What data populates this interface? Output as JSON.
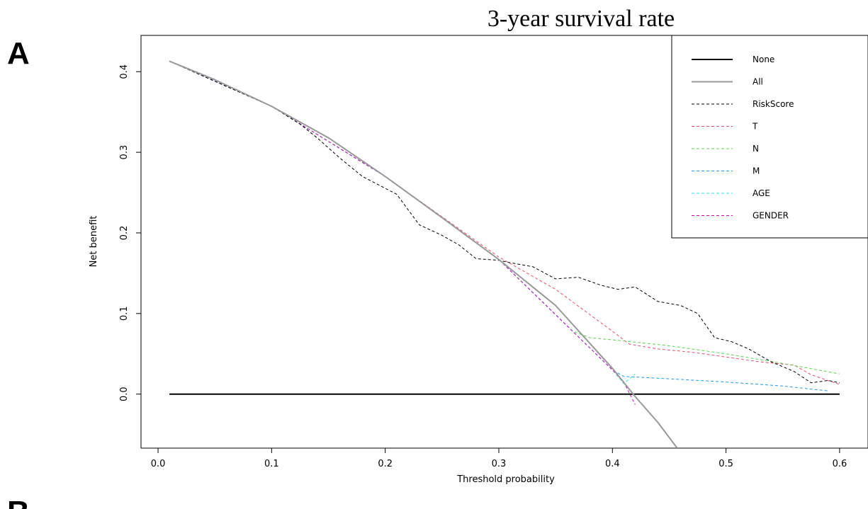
{
  "panel_labels": {
    "top": "A",
    "bottom": "B"
  },
  "chart_data": {
    "type": "line",
    "title": "3-year survival rate",
    "xlabel": "Threshold probability",
    "ylabel": "Net benefit",
    "xlim": [
      -0.015,
      0.625
    ],
    "ylim": [
      -0.067,
      0.445
    ],
    "xticks": [
      "0.0",
      "0.1",
      "0.2",
      "0.3",
      "0.4",
      "0.5",
      "0.6"
    ],
    "yticks": [
      "0.0",
      "0.1",
      "0.2",
      "0.3",
      "0.4"
    ],
    "grid": false,
    "legend_position": "top-right",
    "series": [
      {
        "name": "None",
        "color": "#000000",
        "style": "solid",
        "width": 2,
        "points": [
          [
            0.01,
            0.0
          ],
          [
            0.6,
            0.0
          ]
        ]
      },
      {
        "name": "All",
        "color": "#999999",
        "style": "solid",
        "width": 2,
        "points": [
          [
            0.01,
            0.413
          ],
          [
            0.05,
            0.39
          ],
          [
            0.1,
            0.357
          ],
          [
            0.15,
            0.318
          ],
          [
            0.2,
            0.27
          ],
          [
            0.25,
            0.219
          ],
          [
            0.3,
            0.167
          ],
          [
            0.35,
            0.11
          ],
          [
            0.4,
            0.032
          ],
          [
            0.42,
            -0.003
          ],
          [
            0.44,
            -0.035
          ],
          [
            0.457,
            -0.067
          ]
        ]
      },
      {
        "name": "RiskScore",
        "color": "#000000",
        "style": "dashed",
        "width": 1,
        "points": [
          [
            0.01,
            0.413
          ],
          [
            0.1,
            0.357
          ],
          [
            0.125,
            0.335
          ],
          [
            0.14,
            0.318
          ],
          [
            0.16,
            0.293
          ],
          [
            0.18,
            0.27
          ],
          [
            0.21,
            0.248
          ],
          [
            0.23,
            0.21
          ],
          [
            0.25,
            0.197
          ],
          [
            0.265,
            0.185
          ],
          [
            0.28,
            0.168
          ],
          [
            0.3,
            0.166
          ],
          [
            0.31,
            0.163
          ],
          [
            0.33,
            0.158
          ],
          [
            0.35,
            0.143
          ],
          [
            0.37,
            0.145
          ],
          [
            0.39,
            0.135
          ],
          [
            0.405,
            0.13
          ],
          [
            0.42,
            0.133
          ],
          [
            0.44,
            0.115
          ],
          [
            0.46,
            0.11
          ],
          [
            0.475,
            0.1
          ],
          [
            0.49,
            0.07
          ],
          [
            0.505,
            0.065
          ],
          [
            0.52,
            0.056
          ],
          [
            0.54,
            0.04
          ],
          [
            0.56,
            0.028
          ],
          [
            0.575,
            0.014
          ],
          [
            0.59,
            0.017
          ],
          [
            0.6,
            0.014
          ]
        ]
      },
      {
        "name": "T",
        "color": "#DF536B",
        "style": "dashed",
        "width": 1,
        "points": [
          [
            0.01,
            0.413
          ],
          [
            0.1,
            0.357
          ],
          [
            0.2,
            0.27
          ],
          [
            0.3,
            0.17
          ],
          [
            0.35,
            0.13
          ],
          [
            0.4,
            0.078
          ],
          [
            0.415,
            0.062
          ],
          [
            0.44,
            0.056
          ],
          [
            0.47,
            0.052
          ],
          [
            0.5,
            0.046
          ],
          [
            0.53,
            0.04
          ],
          [
            0.56,
            0.036
          ],
          [
            0.575,
            0.024
          ],
          [
            0.6,
            0.012
          ]
        ]
      },
      {
        "name": "N",
        "color": "#61D04F",
        "style": "dashed",
        "width": 1,
        "points": [
          [
            0.01,
            0.413
          ],
          [
            0.1,
            0.357
          ],
          [
            0.2,
            0.27
          ],
          [
            0.3,
            0.167
          ],
          [
            0.365,
            0.078
          ],
          [
            0.38,
            0.07
          ],
          [
            0.41,
            0.066
          ],
          [
            0.45,
            0.06
          ],
          [
            0.5,
            0.05
          ],
          [
            0.55,
            0.038
          ],
          [
            0.6,
            0.025
          ]
        ]
      },
      {
        "name": "M",
        "color": "#2297E6",
        "style": "dashed",
        "width": 1,
        "points": [
          [
            0.01,
            0.413
          ],
          [
            0.1,
            0.357
          ],
          [
            0.2,
            0.27
          ],
          [
            0.3,
            0.167
          ],
          [
            0.4,
            0.03
          ],
          [
            0.41,
            0.022
          ],
          [
            0.45,
            0.019
          ],
          [
            0.5,
            0.015
          ],
          [
            0.55,
            0.01
          ],
          [
            0.59,
            0.004
          ]
        ]
      },
      {
        "name": "AGE",
        "color": "#28E2E5",
        "style": "dashed",
        "width": 1,
        "points": [
          [
            0.01,
            0.413
          ],
          [
            0.1,
            0.357
          ],
          [
            0.2,
            0.27
          ],
          [
            0.3,
            0.167
          ],
          [
            0.4,
            0.03
          ],
          [
            0.41,
            0.013
          ],
          [
            0.42,
            0.025
          ]
        ]
      },
      {
        "name": "GENDER",
        "color": "#CD0BBC",
        "style": "dashed",
        "width": 1,
        "points": [
          [
            0.01,
            0.413
          ],
          [
            0.1,
            0.357
          ],
          [
            0.2,
            0.27
          ],
          [
            0.3,
            0.167
          ],
          [
            0.4,
            0.03
          ],
          [
            0.41,
            0.015
          ],
          [
            0.42,
            -0.013
          ]
        ]
      }
    ]
  }
}
